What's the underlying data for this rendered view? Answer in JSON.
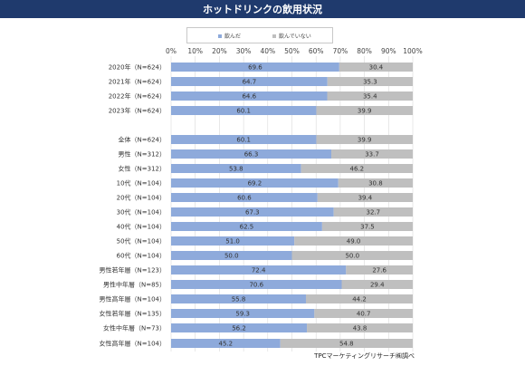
{
  "header": {
    "title": "ホットドリンクの飲用状況"
  },
  "legend": {
    "drank_label": "飲んだ",
    "not_drank_label": "飲んでいない"
  },
  "source": "TPCマーケティングリサーチ㈱調べ",
  "colors": {
    "drank": "#8eaadb",
    "not_drank": "#bfbfbf",
    "header_bg": "#1f3a6d"
  },
  "chart_data": {
    "type": "bar",
    "orientation": "horizontal",
    "stacked": true,
    "xlim": [
      0,
      100
    ],
    "x_ticks": [
      "0%",
      "10%",
      "20%",
      "30%",
      "40%",
      "50%",
      "60%",
      "70%",
      "80%",
      "90%",
      "100%"
    ],
    "xlabel": "",
    "ylabel": "",
    "grid": true,
    "legend_position": "top",
    "categories": [
      "2020年（N=624）",
      "2021年（N=624）",
      "2022年（N=624）",
      "2023年（N=624）",
      "全体（N=624）",
      "男性（N=312）",
      "女性（N=312）",
      "10代（N=104）",
      "20代（N=104）",
      "30代（N=104）",
      "40代（N=104）",
      "50代（N=104）",
      "60代（N=104）",
      "男性若年層（N=123）",
      "男性中年層（N=85）",
      "男性高年層（N=104）",
      "女性若年層（N=135）",
      "女性中年層（N=73）",
      "女性高年層（N=104）"
    ],
    "series": [
      {
        "name": "飲んだ",
        "values": [
          69.6,
          64.7,
          64.6,
          60.1,
          60.1,
          66.3,
          53.8,
          69.2,
          60.6,
          67.3,
          62.5,
          51.0,
          50.0,
          72.4,
          70.6,
          55.8,
          59.3,
          56.2,
          45.2
        ]
      },
      {
        "name": "飲んでいない",
        "values": [
          30.4,
          35.3,
          35.4,
          39.9,
          39.9,
          33.7,
          46.2,
          30.8,
          39.4,
          32.7,
          37.5,
          49.0,
          50.0,
          27.6,
          29.4,
          44.2,
          40.7,
          43.8,
          54.8
        ]
      }
    ]
  }
}
